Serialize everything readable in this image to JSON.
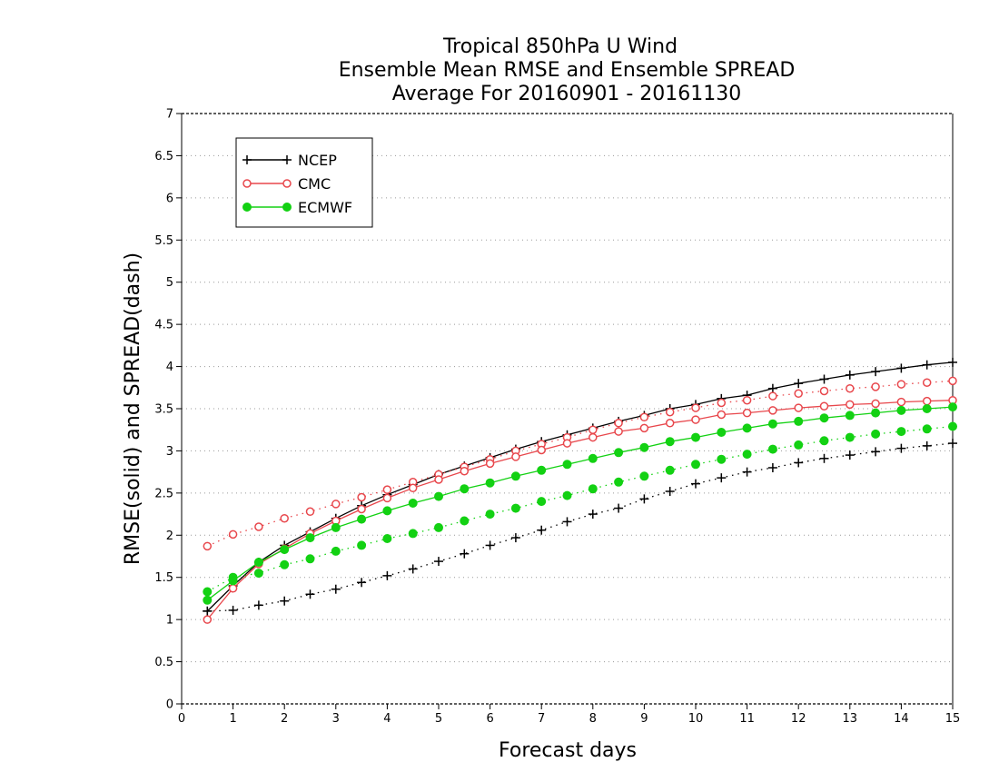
{
  "chart_data": {
    "type": "line",
    "title_lines": [
      "Tropical 850hPa U Wind",
      "Ensemble Mean RMSE and Ensemble SPREAD",
      "Average For 20160901 - 20161130"
    ],
    "xlabel": "Forecast days",
    "ylabel": "RMSE(solid) and SPREAD(dash)",
    "xlim": [
      0,
      15
    ],
    "ylim": [
      0,
      7
    ],
    "x_ticks": [
      "0",
      "1",
      "2",
      "3",
      "4",
      "5",
      "6",
      "7",
      "8",
      "9",
      "10",
      "11",
      "12",
      "13",
      "14",
      "15"
    ],
    "y_ticks": [
      "0",
      "0.5",
      "1",
      "1.5",
      "2",
      "2.5",
      "3",
      "3.5",
      "4",
      "4.5",
      "5",
      "5.5",
      "6",
      "6.5",
      "7"
    ],
    "grid": "horizontal dotted",
    "legend_position": "top-left",
    "x": [
      0.5,
      1,
      1.5,
      2,
      2.5,
      3,
      3.5,
      4,
      4.5,
      5,
      5.5,
      6,
      6.5,
      7,
      7.5,
      8,
      8.5,
      9,
      9.5,
      10,
      10.5,
      11,
      11.5,
      12,
      12.5,
      13,
      13.5,
      14,
      14.5,
      15
    ],
    "series": [
      {
        "name": "NCEP",
        "color": "#000000",
        "marker": "plus",
        "rmse": [
          1.1,
          1.4,
          1.68,
          1.88,
          2.04,
          2.2,
          2.35,
          2.48,
          2.6,
          2.72,
          2.82,
          2.92,
          3.02,
          3.11,
          3.19,
          3.27,
          3.35,
          3.42,
          3.5,
          3.55,
          3.62,
          3.66,
          3.74,
          3.8,
          3.85,
          3.9,
          3.94,
          3.98,
          4.02,
          4.05
        ],
        "spread": [
          1.1,
          1.11,
          1.17,
          1.22,
          1.3,
          1.36,
          1.44,
          1.52,
          1.6,
          1.69,
          1.78,
          1.88,
          1.97,
          2.06,
          2.16,
          2.25,
          2.32,
          2.43,
          2.52,
          2.61,
          2.68,
          2.75,
          2.8,
          2.86,
          2.91,
          2.95,
          2.99,
          3.03,
          3.06,
          3.09
        ]
      },
      {
        "name": "CMC",
        "color": "#e8474c",
        "marker": "open-circle",
        "rmse": [
          1.0,
          1.37,
          1.66,
          1.84,
          2.02,
          2.17,
          2.31,
          2.44,
          2.56,
          2.66,
          2.76,
          2.85,
          2.93,
          3.01,
          3.09,
          3.16,
          3.23,
          3.27,
          3.33,
          3.37,
          3.43,
          3.45,
          3.48,
          3.51,
          3.53,
          3.55,
          3.56,
          3.58,
          3.59,
          3.6
        ],
        "spread": [
          1.87,
          2.01,
          2.1,
          2.2,
          2.28,
          2.37,
          2.45,
          2.54,
          2.63,
          2.72,
          2.81,
          2.9,
          3.0,
          3.08,
          3.16,
          3.25,
          3.33,
          3.4,
          3.46,
          3.51,
          3.57,
          3.6,
          3.65,
          3.68,
          3.71,
          3.74,
          3.76,
          3.79,
          3.81,
          3.83
        ]
      },
      {
        "name": "ECMWF",
        "color": "#13d113",
        "marker": "filled-circle",
        "rmse": [
          1.23,
          1.46,
          1.68,
          1.83,
          1.97,
          2.09,
          2.19,
          2.29,
          2.38,
          2.46,
          2.55,
          2.62,
          2.7,
          2.77,
          2.84,
          2.91,
          2.98,
          3.04,
          3.11,
          3.16,
          3.22,
          3.27,
          3.32,
          3.35,
          3.39,
          3.42,
          3.45,
          3.48,
          3.5,
          3.52
        ],
        "spread": [
          1.33,
          1.5,
          1.55,
          1.65,
          1.72,
          1.81,
          1.88,
          1.96,
          2.02,
          2.09,
          2.17,
          2.25,
          2.32,
          2.4,
          2.47,
          2.55,
          2.63,
          2.7,
          2.77,
          2.84,
          2.9,
          2.96,
          3.02,
          3.07,
          3.12,
          3.16,
          3.2,
          3.23,
          3.26,
          3.29
        ]
      }
    ]
  }
}
